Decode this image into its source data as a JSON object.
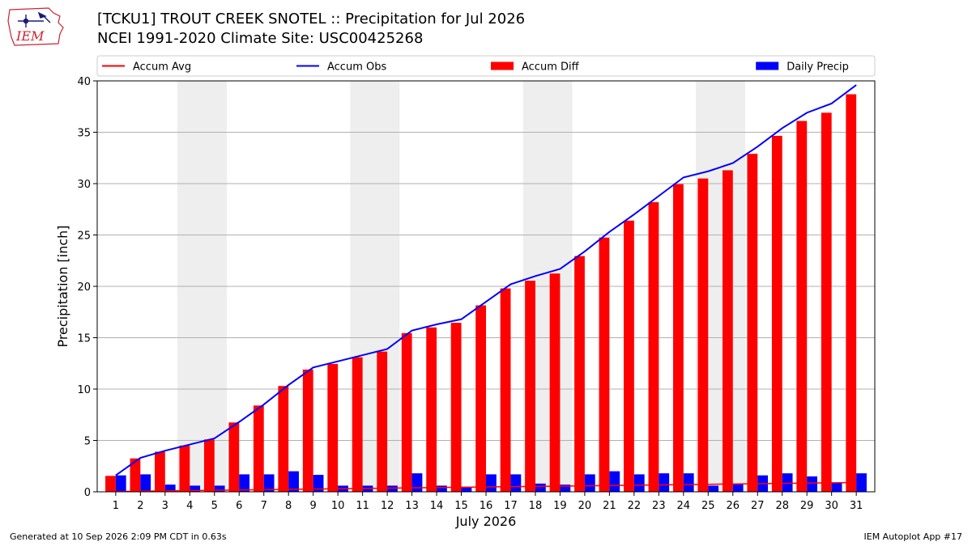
{
  "logo": {
    "text": "IEM",
    "icon": "iem-state-logo"
  },
  "header": {
    "title_line1": "[TCKU1] TROUT CREEK SNOTEL :: Precipitation for Jul 2026",
    "title_line2": "NCEI 1991-2020 Climate Site: USC00425268"
  },
  "chart_data": {
    "type": "bar",
    "xlabel": "July 2026",
    "ylabel": "Precipitation [inch]",
    "ylim": [
      0,
      40
    ],
    "yticks": [
      0,
      5,
      10,
      15,
      20,
      25,
      30,
      35,
      40
    ],
    "categories": [
      "1",
      "2",
      "3",
      "4",
      "5",
      "6",
      "7",
      "8",
      "9",
      "10",
      "11",
      "12",
      "13",
      "14",
      "15",
      "16",
      "17",
      "18",
      "19",
      "20",
      "21",
      "22",
      "23",
      "24",
      "25",
      "26",
      "27",
      "28",
      "29",
      "30",
      "31"
    ],
    "weekend_shading": [
      [
        4,
        5
      ],
      [
        11,
        12
      ],
      [
        18,
        19
      ],
      [
        25,
        26
      ]
    ],
    "grid": "horizontal",
    "legend_placement": "top",
    "series": [
      {
        "name": "Accum Avg",
        "kind": "line",
        "color": "#ff0000",
        "values": [
          0.03,
          0.06,
          0.09,
          0.12,
          0.15,
          0.18,
          0.21,
          0.24,
          0.27,
          0.3,
          0.32,
          0.35,
          0.38,
          0.41,
          0.44,
          0.47,
          0.5,
          0.52,
          0.55,
          0.58,
          0.61,
          0.64,
          0.67,
          0.7,
          0.73,
          0.76,
          0.79,
          0.82,
          0.85,
          0.88,
          0.91
        ]
      },
      {
        "name": "Accum Obs",
        "kind": "line",
        "color": "#0000ff",
        "values": [
          1.6,
          3.3,
          4.0,
          4.6,
          5.2,
          6.8,
          8.5,
          10.4,
          12.1,
          12.7,
          13.3,
          13.9,
          15.7,
          16.3,
          16.8,
          18.5,
          20.2,
          21.0,
          21.7,
          23.4,
          25.3,
          27.0,
          28.8,
          30.6,
          31.2,
          32.0,
          33.6,
          35.4,
          36.9,
          37.8,
          39.6
        ]
      },
      {
        "name": "Accum Diff",
        "kind": "bar",
        "color": "#ff0000",
        "values": [
          1.55,
          3.25,
          3.9,
          4.5,
          5.1,
          6.75,
          8.4,
          10.3,
          11.9,
          12.45,
          13.1,
          13.65,
          15.45,
          16.0,
          16.45,
          18.15,
          19.8,
          20.55,
          21.25,
          22.95,
          24.75,
          26.4,
          28.2,
          29.95,
          30.5,
          31.3,
          32.9,
          34.65,
          36.1,
          36.9,
          38.7
        ]
      },
      {
        "name": "Daily Precip",
        "kind": "bar",
        "color": "#0000ff",
        "values": [
          1.6,
          1.7,
          0.7,
          0.6,
          0.6,
          1.7,
          1.7,
          2.0,
          1.65,
          0.6,
          0.6,
          0.6,
          1.8,
          0.6,
          0.5,
          1.7,
          1.7,
          0.8,
          0.7,
          1.7,
          2.0,
          1.7,
          1.8,
          1.8,
          0.6,
          0.8,
          1.6,
          1.8,
          1.5,
          0.9,
          1.8
        ]
      }
    ]
  },
  "footer": {
    "left": "Generated at 10 Sep 2026 2:09 PM CDT in 0.63s",
    "right": "IEM Autoplot App #17"
  }
}
